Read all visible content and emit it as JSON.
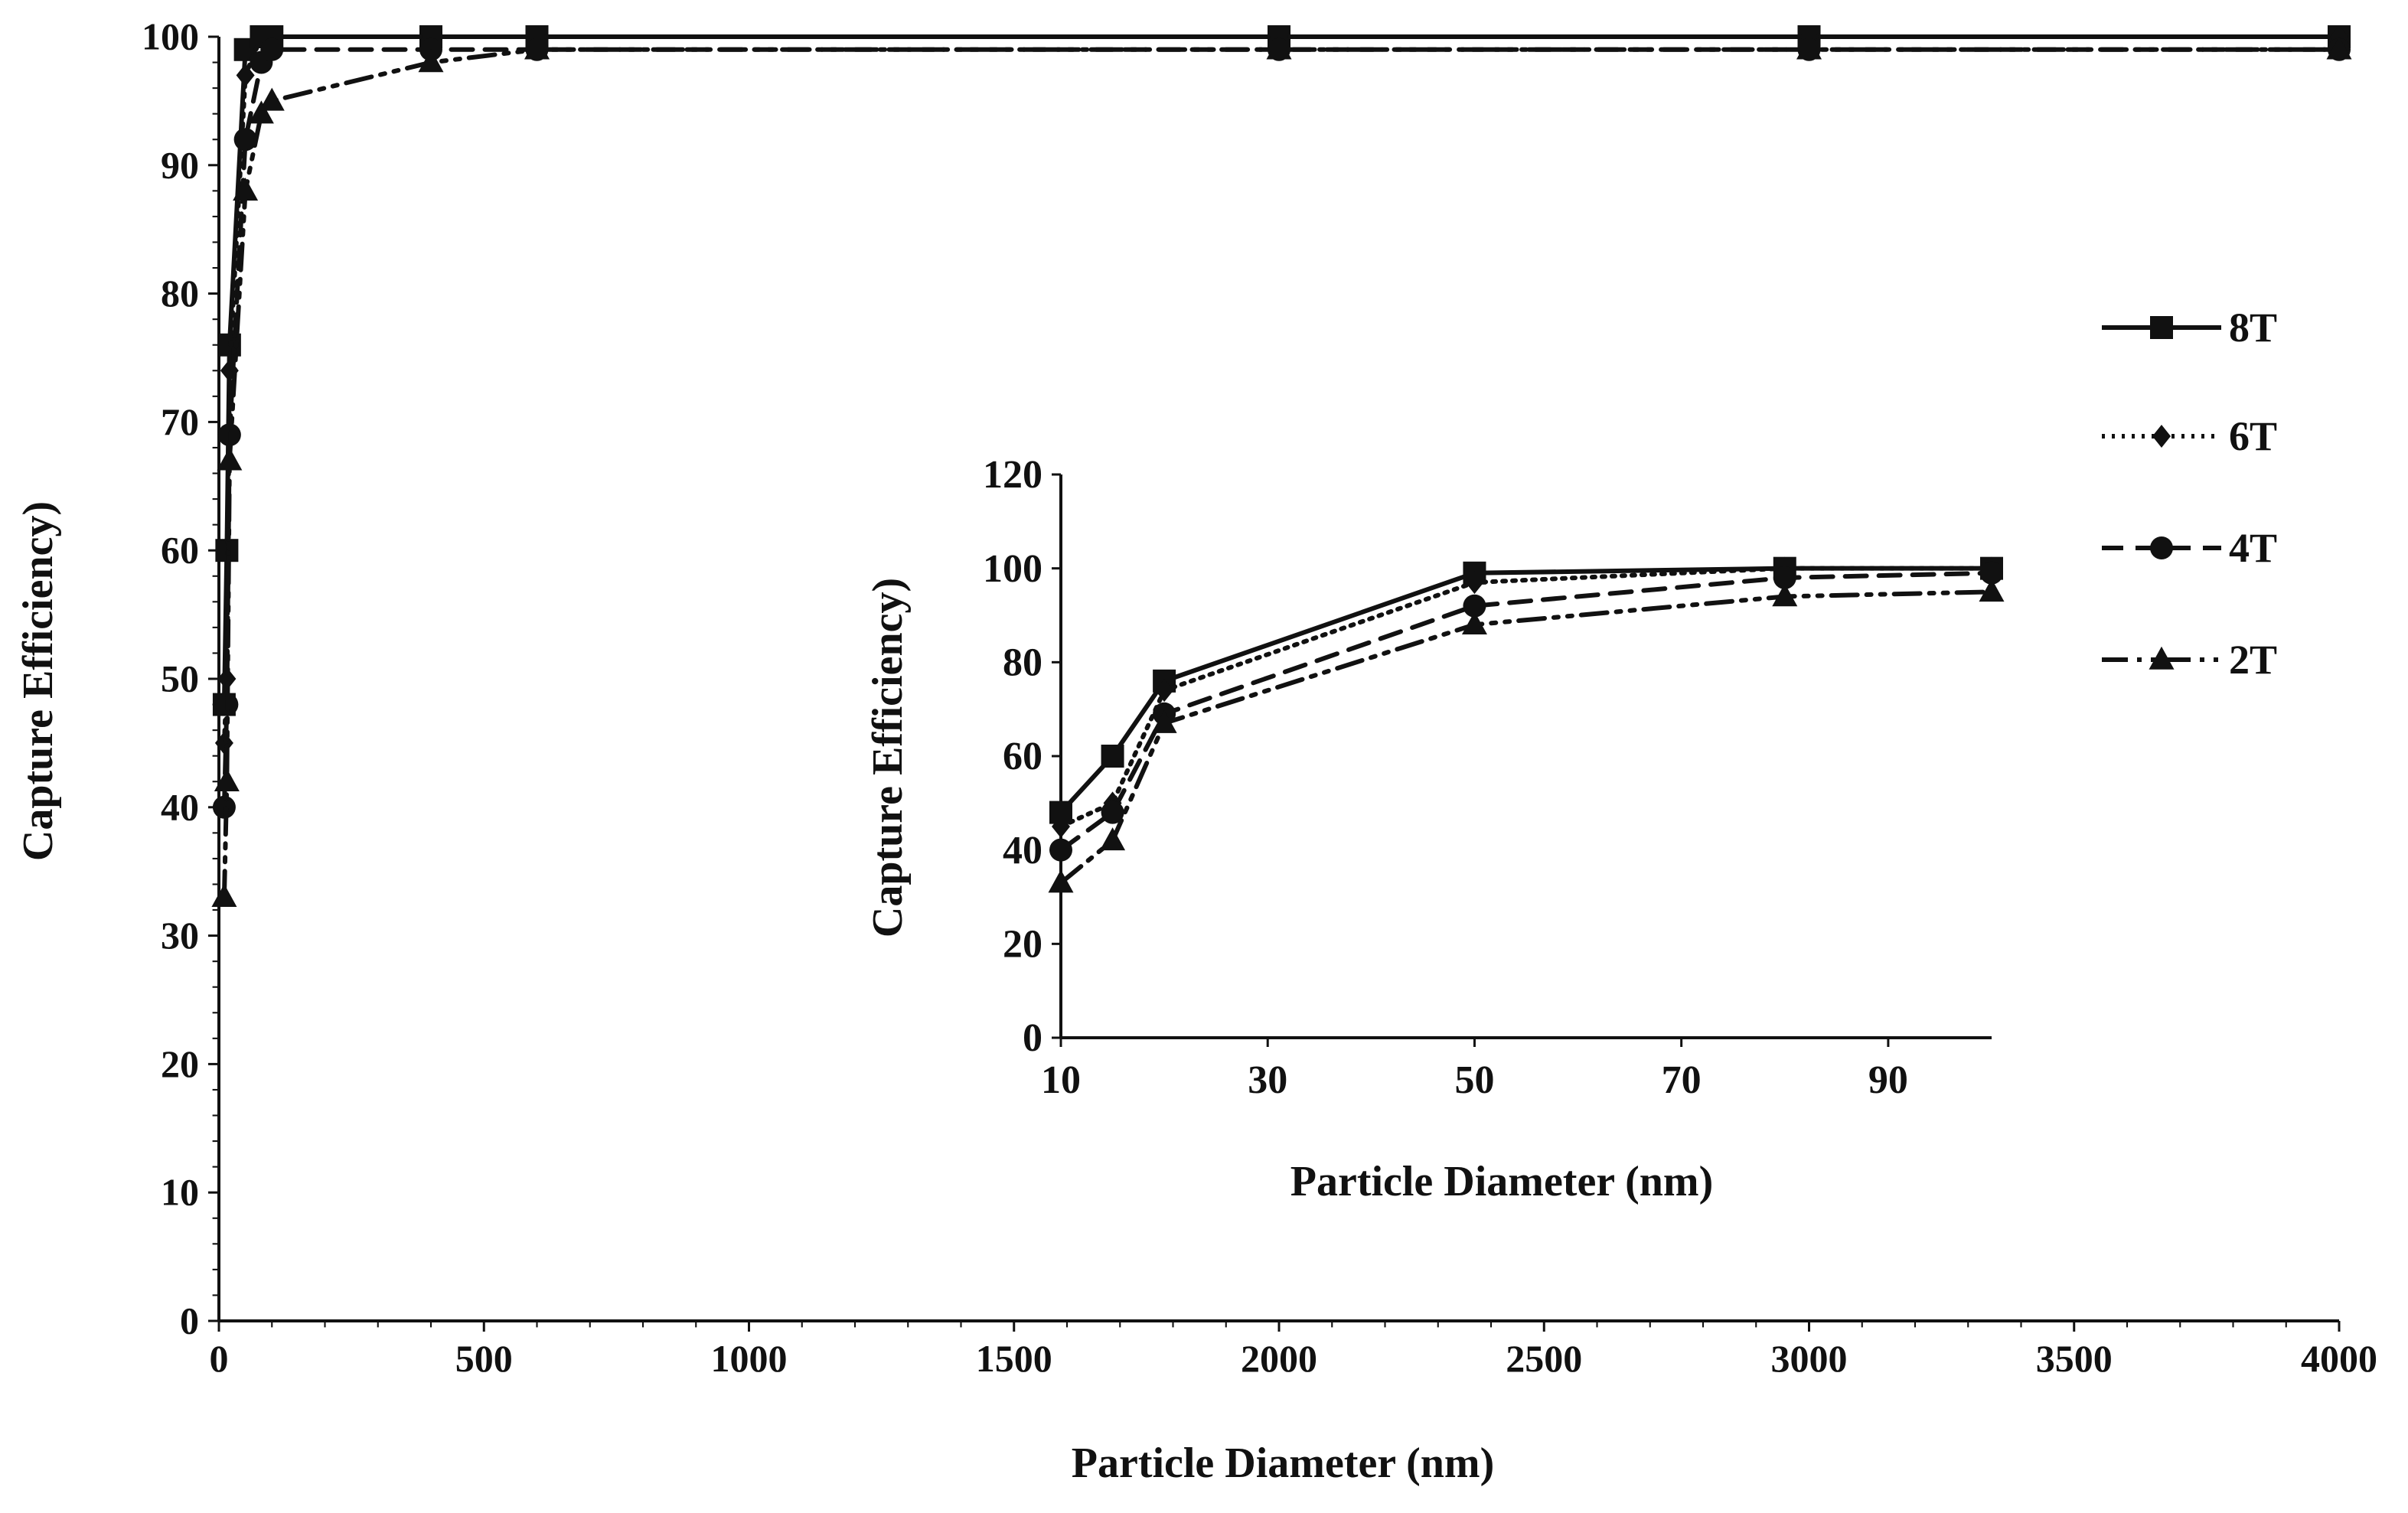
{
  "chart_data": [
    {
      "type": "line",
      "xlabel": "Particle Diameter (nm)",
      "ylabel": "Capture Efficiency)",
      "xlim": [
        0,
        4000
      ],
      "ylim": [
        0,
        100
      ],
      "xticks": [
        0,
        500,
        1000,
        1500,
        2000,
        2500,
        3000,
        3500,
        4000
      ],
      "yticks": [
        0,
        10,
        20,
        30,
        40,
        50,
        60,
        70,
        80,
        90,
        100
      ],
      "grid": false,
      "legend_position": "right",
      "series": [
        {
          "name": "8T",
          "style": "solid",
          "marker": "square",
          "x": [
            10,
            15,
            20,
            50,
            80,
            100,
            400,
            600,
            2000,
            3000,
            4000
          ],
          "y": [
            48,
            60,
            76,
            99,
            100,
            100,
            100,
            100,
            100,
            100,
            100
          ]
        },
        {
          "name": "6T",
          "style": "dotted",
          "marker": "diamond",
          "x": [
            10,
            15,
            20,
            50,
            80,
            100,
            400,
            600,
            2000,
            3000,
            4000
          ],
          "y": [
            45,
            50,
            74,
            97,
            100,
            100,
            100,
            100,
            100,
            100,
            100
          ]
        },
        {
          "name": "4T",
          "style": "dashed",
          "marker": "circle",
          "x": [
            10,
            15,
            20,
            50,
            80,
            100,
            400,
            600,
            2000,
            3000,
            4000
          ],
          "y": [
            40,
            48,
            69,
            92,
            98,
            99,
            99,
            99,
            99,
            99,
            99
          ]
        },
        {
          "name": "2T",
          "style": "dashdotdot",
          "marker": "triangle",
          "x": [
            10,
            15,
            20,
            50,
            80,
            100,
            400,
            600,
            2000,
            3000,
            4000
          ],
          "y": [
            33,
            42,
            67,
            88,
            94,
            95,
            98,
            99,
            99,
            99,
            99
          ]
        }
      ]
    },
    {
      "type": "line",
      "xlabel": "Particle Diameter (nm)",
      "ylabel": "Capture Efficiency)",
      "xlim": [
        10,
        100
      ],
      "ylim": [
        0,
        120
      ],
      "xticks": [
        10,
        30,
        50,
        70,
        90
      ],
      "yticks": [
        0,
        20,
        40,
        60,
        80,
        100,
        120
      ],
      "grid": false,
      "series": [
        {
          "name": "8T",
          "style": "solid",
          "marker": "square",
          "x": [
            10,
            15,
            20,
            50,
            80,
            100
          ],
          "y": [
            48,
            60,
            76,
            99,
            100,
            100
          ]
        },
        {
          "name": "6T",
          "style": "dotted",
          "marker": "diamond",
          "x": [
            10,
            15,
            20,
            50,
            80,
            100
          ],
          "y": [
            45,
            50,
            74,
            97,
            100,
            100
          ]
        },
        {
          "name": "4T",
          "style": "dashed",
          "marker": "circle",
          "x": [
            10,
            15,
            20,
            50,
            80,
            100
          ],
          "y": [
            40,
            48,
            69,
            92,
            98,
            99
          ]
        },
        {
          "name": "2T",
          "style": "dashdotdot",
          "marker": "triangle",
          "x": [
            10,
            15,
            20,
            50,
            80,
            100
          ],
          "y": [
            33,
            42,
            67,
            88,
            94,
            95
          ]
        }
      ]
    }
  ]
}
